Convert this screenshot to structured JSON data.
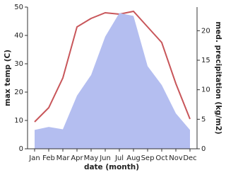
{
  "chart_data": {
    "type": "line-area",
    "x_label": "date (month)",
    "y_label": "max temp (C)",
    "y2_label": "med. precipitation (kg/m2)",
    "categories": [
      "Jan",
      "Feb",
      "Mar",
      "Apr",
      "May",
      "Jun",
      "Jul",
      "Aug",
      "Sep",
      "Oct",
      "Nov",
      "Dec"
    ],
    "ylim": [
      0,
      50
    ],
    "yticks": [
      0,
      10,
      20,
      30,
      40,
      50
    ],
    "y2lim": [
      0,
      24
    ],
    "y2ticks": [
      0,
      5,
      10,
      15,
      20
    ],
    "series": [
      {
        "name": "max temp",
        "color": "#c8565a",
        "type": "line",
        "values": [
          9.5,
          14.5,
          25,
          43,
          46,
          48,
          47.5,
          48.5,
          43,
          37.5,
          23,
          10.5
        ]
      },
      {
        "name": "precipitation",
        "color": "#b4bef0",
        "type": "area",
        "axis": "y2",
        "values": [
          3.2,
          3.7,
          3.3,
          9,
          12.5,
          19,
          23,
          22.5,
          14,
          10.8,
          6,
          3.2
        ]
      }
    ]
  }
}
